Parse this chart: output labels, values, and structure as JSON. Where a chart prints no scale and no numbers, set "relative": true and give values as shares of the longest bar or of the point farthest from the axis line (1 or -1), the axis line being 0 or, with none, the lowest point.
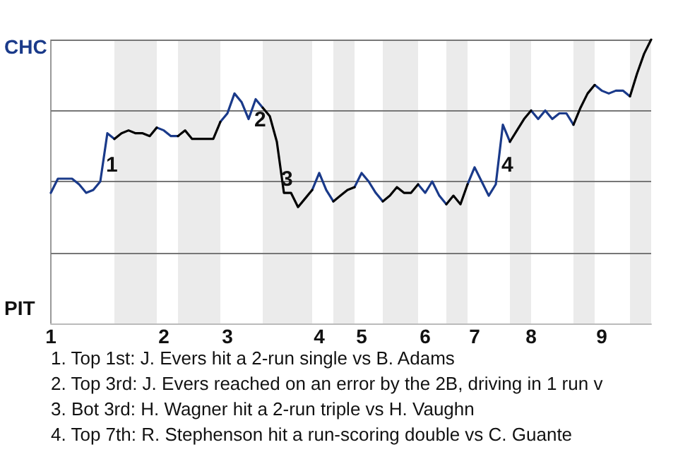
{
  "chart_data": {
    "type": "line",
    "relative": true,
    "categories": [
      "1",
      null,
      null,
      null,
      null,
      null,
      null,
      null,
      null,
      null,
      null,
      null,
      null,
      null,
      null,
      null,
      "2",
      null,
      null,
      null,
      null,
      null,
      null,
      null,
      null,
      "3",
      null,
      null,
      null,
      null,
      null,
      null,
      null,
      null,
      null,
      null,
      null,
      null,
      "4",
      null,
      null,
      null,
      null,
      null,
      "5",
      null,
      null,
      null,
      null,
      null,
      null,
      null,
      null,
      "6",
      null,
      null,
      null,
      null,
      null,
      null,
      "7",
      null,
      null,
      null,
      null,
      null,
      null,
      null,
      "8",
      null,
      null,
      null,
      null,
      null,
      null,
      null,
      null,
      null,
      "9",
      null,
      null,
      null,
      null,
      null,
      null,
      null
    ],
    "marker": "none",
    "ref_lines": [
      {
        "axis": "y",
        "value": 0.25,
        "color": "#777777"
      },
      {
        "axis": "y",
        "value": 0.5,
        "color": "#777777"
      },
      {
        "axis": "y",
        "value": 0.75,
        "color": "#777777"
      },
      {
        "axis": "y",
        "value": 1,
        "color": "#777777"
      }
    ],
    "series": [
      {
        "color": "#1a3a8a",
        "values": [
          0.46,
          0.51,
          0.51,
          0.51,
          0.49,
          0.46,
          0.47,
          0.5,
          0.67,
          0.65,
          null,
          null,
          null,
          null,
          null,
          0.69,
          0.68,
          0.66,
          0.66,
          null,
          null,
          null,
          null,
          null,
          0.71,
          0.74,
          0.81,
          0.78,
          0.72,
          0.79,
          0.76,
          null,
          null,
          null,
          null,
          null,
          null,
          0.47,
          0.53,
          0.47,
          0.43,
          null,
          null,
          0.48,
          0.53,
          0.5,
          0.46,
          0.43,
          null,
          null,
          null,
          null,
          0.49,
          0.46,
          0.5,
          0.45,
          0.42,
          null,
          null,
          0.49,
          0.55,
          0.5,
          0.45,
          0.49,
          0.7,
          0.64,
          null,
          null,
          0.75,
          0.72,
          0.75,
          0.72,
          0.74,
          0.74,
          0.7,
          null,
          null,
          0.84,
          0.82,
          0.81,
          0.82,
          0.82,
          0.8,
          null,
          null,
          null
        ]
      },
      {
        "color": "#000000",
        "values": [
          null,
          null,
          null,
          null,
          null,
          null,
          null,
          null,
          null,
          0.65,
          0.67,
          0.68,
          0.67,
          0.67,
          0.66,
          0.69,
          null,
          null,
          0.66,
          0.68,
          0.65,
          0.65,
          0.65,
          0.65,
          0.71,
          null,
          null,
          null,
          null,
          null,
          0.76,
          0.73,
          0.64,
          0.46,
          0.46,
          0.41,
          0.44,
          0.47,
          null,
          null,
          0.43,
          0.45,
          0.47,
          0.48,
          null,
          null,
          null,
          0.43,
          0.45,
          0.48,
          0.46,
          0.46,
          0.49,
          null,
          null,
          null,
          0.42,
          0.45,
          0.42,
          0.49,
          null,
          null,
          null,
          null,
          null,
          0.64,
          0.68,
          0.72,
          0.75,
          null,
          null,
          null,
          null,
          null,
          0.7,
          0.76,
          0.81,
          0.84,
          null,
          null,
          null,
          null,
          0.8,
          0.88,
          0.95,
          1
        ]
      }
    ],
    "annotations": [
      "CHC",
      "PIT",
      "1",
      "2",
      "3",
      "4",
      "1. Top 1st: J. Evers hit a 2-run single vs B. Adams",
      "2. Top 3rd: J. Evers reached on an error by the 2B, driving in 1 run v",
      "3. Bot 3rd: H. Wagner hit a 2-run triple vs H. Vaughn",
      "4. Top 7th: R. Stephenson hit a run-scoring double vs C. Guante"
    ]
  }
}
